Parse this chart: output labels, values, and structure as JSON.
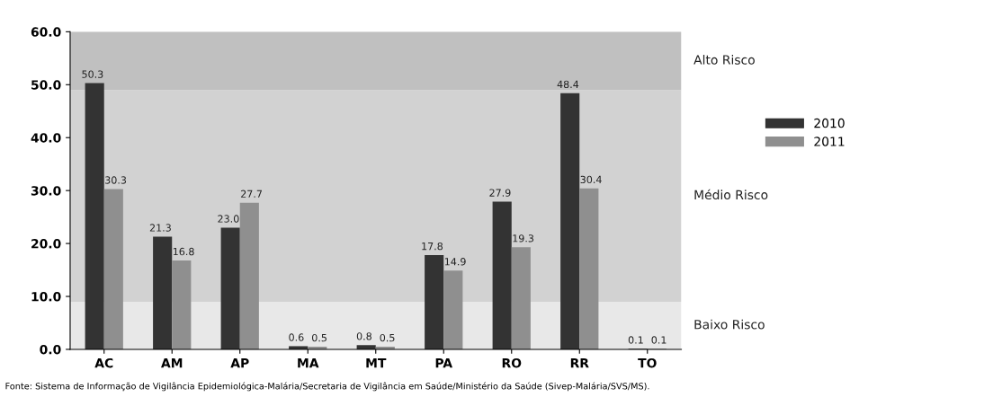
{
  "chart_data": {
    "type": "bar",
    "categories": [
      "AC",
      "AM",
      "AP",
      "MA",
      "MT",
      "PA",
      "RO",
      "RR",
      "TO"
    ],
    "series": [
      {
        "name": "2010",
        "color": "#333333",
        "values": [
          50.3,
          21.3,
          23.0,
          0.6,
          0.8,
          17.8,
          27.9,
          48.4,
          0.1
        ],
        "value_labels": [
          "50.3",
          "21.3",
          "23.0",
          "0.6",
          "0.8",
          "17.8",
          "27.9",
          "48.4",
          "0.1"
        ]
      },
      {
        "name": "2011",
        "color": "#8f8f8f",
        "values": [
          30.3,
          16.8,
          27.7,
          0.5,
          0.5,
          14.9,
          19.3,
          30.4,
          0.1
        ],
        "value_labels": [
          "30.3",
          "16.8",
          "27.7",
          "0.5",
          "0.5",
          "14.9",
          "19.3",
          "30.4",
          "0.1"
        ]
      }
    ],
    "ylim": [
      0,
      60
    ],
    "yticks": [
      {
        "value": 0,
        "label": "0.0"
      },
      {
        "value": 10,
        "label": "10.0"
      },
      {
        "value": 20,
        "label": "20.0"
      },
      {
        "value": 30,
        "label": "30.0"
      },
      {
        "value": 40,
        "label": "40.0"
      },
      {
        "value": 50,
        "label": "50.0"
      },
      {
        "value": 60,
        "label": "60.0"
      }
    ],
    "bands": [
      {
        "axis": "y",
        "from": 0,
        "to": 9,
        "label": "Baixo Risco",
        "color": "#e8e8e8"
      },
      {
        "axis": "y",
        "from": 9,
        "to": 49,
        "label": "Médio Risco",
        "color": "#d2d2d2"
      },
      {
        "axis": "y",
        "from": 49,
        "to": 60,
        "label": "Alto Risco",
        "color": "#c0c0c0"
      }
    ],
    "grid": false,
    "legend": "right",
    "annotations": [
      "Fonte: Sistema de Informação de Vigilância Epidemiológica-Malária/Secretaria de Vigilância em Saúde/Ministério da Saúde (Sivep-Malária/SVS/MS)."
    ]
  }
}
